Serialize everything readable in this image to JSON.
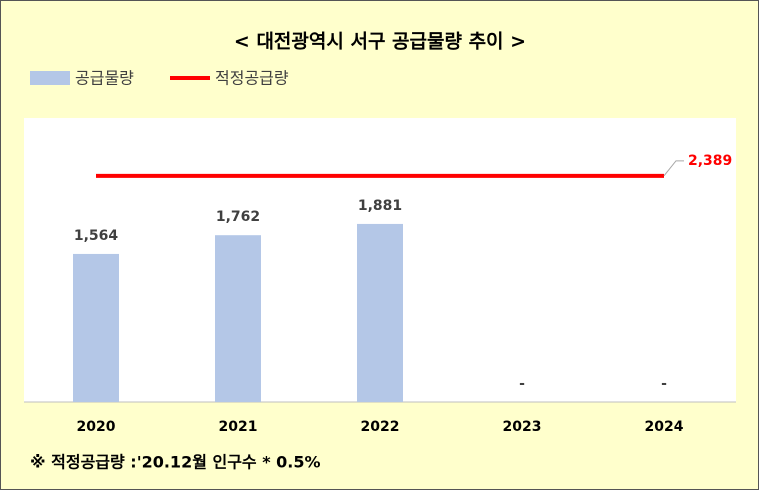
{
  "chart_data": {
    "type": "bar_line",
    "title": "< 대전광역시 서구 공급물량 추이 >",
    "categories": [
      "2020",
      "2021",
      "2022",
      "2023",
      "2024"
    ],
    "series": [
      {
        "name": "공급물량",
        "type": "bar",
        "color": "#b4c7e7",
        "values": [
          1564,
          1762,
          1881,
          null,
          null
        ],
        "value_labels": [
          "1,564",
          "1,762",
          "1,881",
          "-",
          "-"
        ]
      },
      {
        "name": "적정공급량",
        "type": "line",
        "color": "#ff0000",
        "values": [
          2389,
          2389,
          2389,
          2389,
          2389
        ],
        "value_labels": [
          null,
          null,
          null,
          null,
          "2,389"
        ]
      }
    ],
    "ylim": [
      0,
      3000
    ],
    "note": "※ 적정공급량 :'20.12월 인구수 * 0.5%"
  }
}
